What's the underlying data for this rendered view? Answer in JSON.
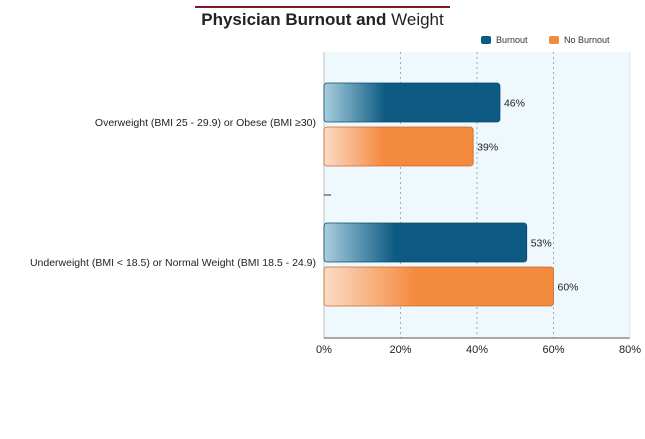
{
  "title": "Physician Burnout and Weight",
  "title_bold": "Physician Burnout and",
  "title_light": "Weight",
  "colors": {
    "burnout": "#0d5a82",
    "no_burnout": "#f48a3e",
    "plot_bg": "#eef8fd",
    "title_rule": "#7a1a2b"
  },
  "chart_data": {
    "type": "bar",
    "orientation": "horizontal",
    "categories": [
      "Overweight (BMI 25 - 29.9) or Obese (BMI ≥30)",
      "Underweight (BMI < 18.5) or Normal Weight (BMI 18.5 - 24.9)"
    ],
    "series": [
      {
        "name": "Burnout",
        "values": [
          46,
          53
        ],
        "labels": [
          "46%",
          "53%"
        ]
      },
      {
        "name": "No Burnout",
        "values": [
          39,
          60
        ],
        "labels": [
          "39%",
          "60%"
        ]
      }
    ],
    "xlim": [
      0,
      80
    ],
    "xticks": [
      0,
      20,
      40,
      60,
      80
    ],
    "xtick_labels": [
      "0%",
      "20%",
      "40%",
      "60%",
      "80%"
    ],
    "legend_position": "top-right",
    "grid": true,
    "xlabel": "",
    "ylabel": ""
  }
}
